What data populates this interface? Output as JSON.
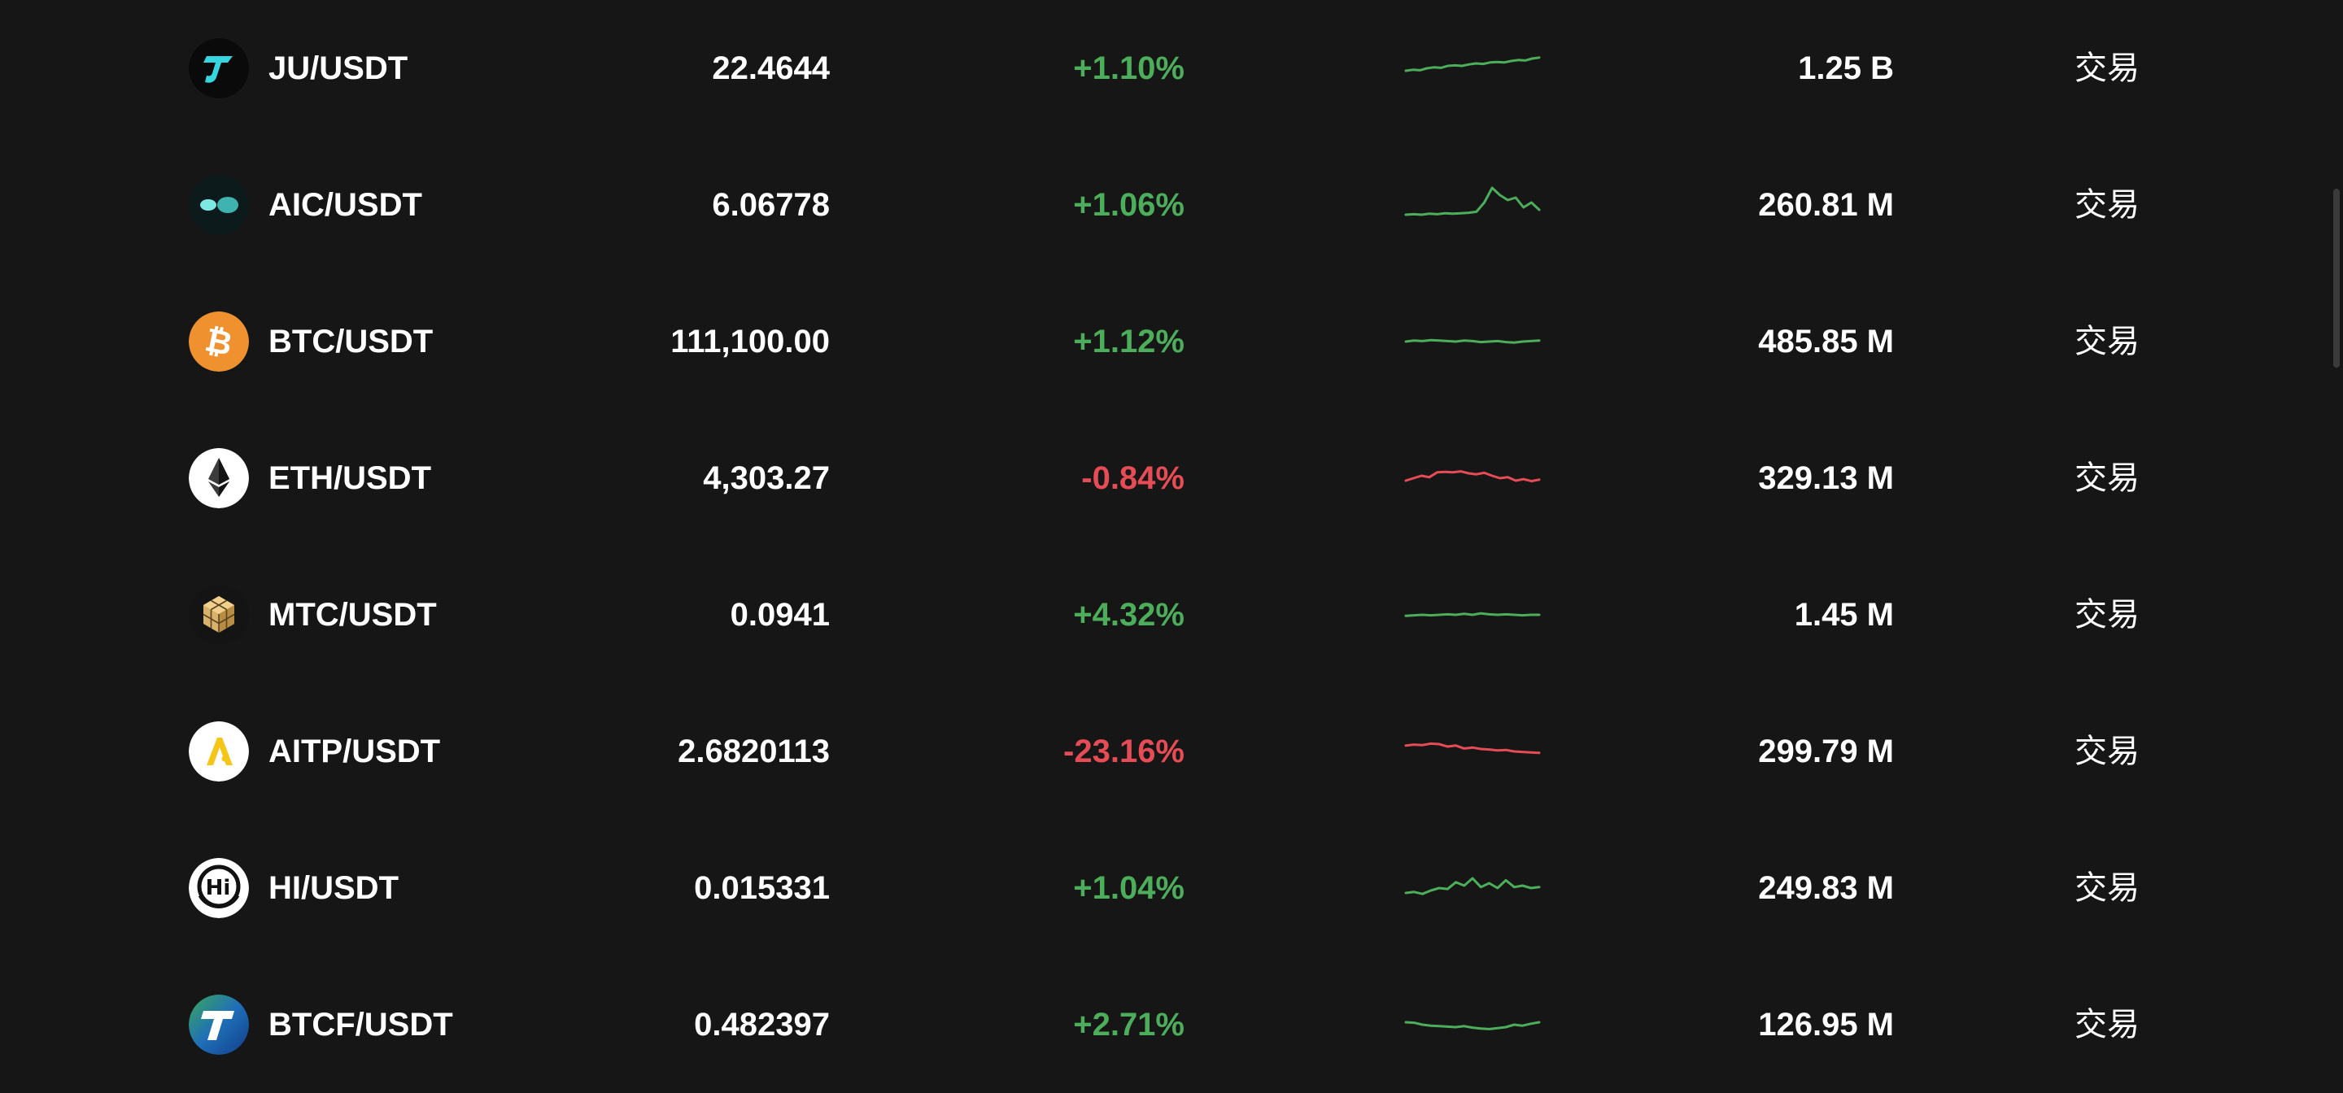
{
  "colors": {
    "background": "#161616",
    "up": "#4cae5a",
    "down": "#e64c55",
    "text": "#ffffff"
  },
  "rows": [
    {
      "pair": "JU/USDT",
      "price": "22.4644",
      "change": "+1.10%",
      "direction": "up",
      "volume": "1.25 B",
      "action": "交易",
      "icon": "ju-coin-icon",
      "sparkline": [
        0.45,
        0.47,
        0.46,
        0.5,
        0.52,
        0.51,
        0.55,
        0.56,
        0.55,
        0.58,
        0.6,
        0.59,
        0.62,
        0.63,
        0.62,
        0.65,
        0.67,
        0.66,
        0.7,
        0.72
      ]
    },
    {
      "pair": "AIC/USDT",
      "price": "6.06778",
      "change": "+1.06%",
      "direction": "up",
      "volume": "260.81 M",
      "action": "交易",
      "icon": "aic-coin-icon",
      "sparkline": [
        0.3,
        0.31,
        0.3,
        0.32,
        0.31,
        0.33,
        0.32,
        0.33,
        0.34,
        0.36,
        0.55,
        0.85,
        0.7,
        0.6,
        0.65,
        0.45,
        0.55,
        0.4
      ]
    },
    {
      "pair": "BTC/USDT",
      "price": "111,100.00",
      "change": "+1.12%",
      "direction": "up",
      "volume": "485.85 M",
      "action": "交易",
      "icon": "bitcoin-icon",
      "sparkline": [
        0.5,
        0.52,
        0.51,
        0.53,
        0.52,
        0.51,
        0.5,
        0.52,
        0.51,
        0.49,
        0.5,
        0.51,
        0.49,
        0.48,
        0.5,
        0.51,
        0.52
      ]
    },
    {
      "pair": "ETH/USDT",
      "price": "4,303.27",
      "change": "-0.84%",
      "direction": "down",
      "volume": "329.13 M",
      "action": "交易",
      "icon": "ethereum-icon",
      "sparkline": [
        0.45,
        0.5,
        0.55,
        0.52,
        0.62,
        0.63,
        0.62,
        0.64,
        0.6,
        0.58,
        0.61,
        0.55,
        0.5,
        0.52,
        0.45,
        0.48,
        0.44,
        0.47
      ]
    },
    {
      "pair": "MTC/USDT",
      "price": "0.0941",
      "change": "+4.32%",
      "direction": "up",
      "volume": "1.45 M",
      "action": "交易",
      "icon": "mtc-coin-icon",
      "sparkline": [
        0.48,
        0.49,
        0.5,
        0.49,
        0.5,
        0.51,
        0.5,
        0.52,
        0.5,
        0.53,
        0.51,
        0.5,
        0.51,
        0.5,
        0.49,
        0.5,
        0.5
      ]
    },
    {
      "pair": "AITP/USDT",
      "price": "2.6820113",
      "change": "-23.16%",
      "direction": "down",
      "volume": "299.79 M",
      "action": "交易",
      "icon": "aitp-coin-icon",
      "sparkline": [
        0.62,
        0.64,
        0.63,
        0.66,
        0.65,
        0.6,
        0.62,
        0.56,
        0.58,
        0.55,
        0.54,
        0.52,
        0.53,
        0.5,
        0.49,
        0.48,
        0.47
      ]
    },
    {
      "pair": "HI/USDT",
      "price": "0.015331",
      "change": "+1.04%",
      "direction": "up",
      "volume": "249.83 M",
      "action": "交易",
      "icon": "hi-coin-icon",
      "sparkline": [
        0.4,
        0.42,
        0.38,
        0.45,
        0.5,
        0.48,
        0.62,
        0.55,
        0.7,
        0.52,
        0.6,
        0.5,
        0.66,
        0.52,
        0.55,
        0.5,
        0.52
      ]
    },
    {
      "pair": "BTCF/USDT",
      "price": "0.482397",
      "change": "+2.71%",
      "direction": "up",
      "volume": "126.95 M",
      "action": "交易",
      "icon": "btcf-coin-icon",
      "sparkline": [
        0.55,
        0.54,
        0.5,
        0.48,
        0.47,
        0.46,
        0.45,
        0.47,
        0.44,
        0.42,
        0.41,
        0.43,
        0.45,
        0.5,
        0.48,
        0.52,
        0.55
      ]
    }
  ]
}
